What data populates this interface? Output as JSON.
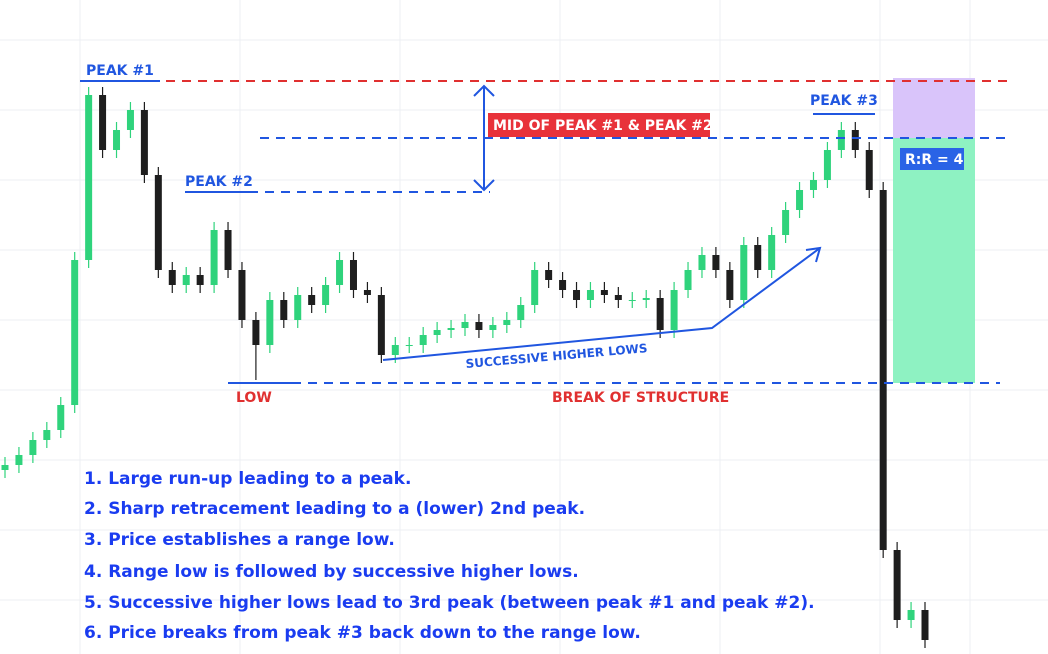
{
  "chart_data": {
    "type": "candlestick",
    "open": [
      184,
      189,
      199,
      214,
      224,
      249,
      394,
      559,
      504,
      524,
      544,
      479,
      384,
      369,
      379,
      369,
      424,
      384,
      334,
      309,
      354,
      334,
      359,
      349,
      369,
      394,
      364,
      359,
      299,
      309,
      309,
      319,
      324,
      326,
      332,
      324,
      329,
      334,
      349,
      384,
      374,
      364,
      354,
      364,
      359,
      354,
      354,
      356,
      324,
      364,
      384,
      399,
      384,
      354,
      409,
      384,
      419,
      444,
      464,
      474,
      504,
      524,
      504,
      464,
      104,
      34,
      44
    ],
    "high": [
      197,
      207,
      222,
      232,
      257,
      402,
      567,
      567,
      532,
      552,
      552,
      487,
      392,
      387,
      387,
      432,
      432,
      392,
      342,
      362,
      362,
      367,
      367,
      377,
      402,
      402,
      372,
      367,
      317,
      317,
      327,
      332,
      334,
      340,
      340,
      337,
      342,
      357,
      392,
      392,
      382,
      372,
      372,
      372,
      367,
      362,
      364,
      364,
      372,
      392,
      407,
      407,
      392,
      417,
      417,
      427,
      452,
      472,
      482,
      512,
      532,
      532,
      512,
      472,
      112,
      52,
      52
    ],
    "low": [
      176,
      181,
      191,
      206,
      216,
      241,
      386,
      496,
      496,
      516,
      471,
      376,
      361,
      361,
      361,
      361,
      376,
      326,
      274,
      301,
      326,
      326,
      341,
      341,
      361,
      356,
      351,
      291,
      291,
      301,
      301,
      311,
      316,
      318,
      316,
      316,
      321,
      326,
      341,
      366,
      356,
      346,
      346,
      351,
      346,
      346,
      346,
      316,
      316,
      356,
      376,
      376,
      346,
      346,
      376,
      376,
      411,
      436,
      456,
      466,
      496,
      496,
      456,
      96,
      26,
      26,
      6
    ],
    "close": [
      189,
      199,
      214,
      224,
      249,
      394,
      559,
      504,
      524,
      544,
      479,
      384,
      369,
      379,
      369,
      424,
      384,
      334,
      309,
      354,
      334,
      359,
      349,
      369,
      394,
      364,
      359,
      299,
      309,
      309,
      319,
      324,
      326,
      332,
      324,
      329,
      334,
      349,
      384,
      374,
      364,
      354,
      364,
      359,
      354,
      354,
      356,
      324,
      364,
      384,
      399,
      384,
      354,
      409,
      384,
      419,
      444,
      464,
      474,
      504,
      524,
      504,
      464,
      104,
      34,
      44,
      14
    ],
    "ylim": [
      0,
      654
    ],
    "up_color": "#2fd37c",
    "down_color": "#1e1e1e",
    "annotations": {
      "peak1": "PEAK #1",
      "peak2": "PEAK #2",
      "peak3": "PEAK #3",
      "mid": "MID OF PEAK #1 & PEAK #2",
      "low": "LOW",
      "bos": "BREAK OF STRUCTURE",
      "higher_lows": "SUCCESSIVE HIGHER LOWS",
      "rr": "R:R = 4"
    }
  },
  "notes": [
    "1. Large run-up leading to a peak.",
    "2. Sharp retracement leading to a (lower) 2nd peak.",
    "3. Price establishes a range low.",
    "4. Range low is followed by successive higher lows.",
    "5. Successive higher lows lead to 3rd peak (between peak #1 and peak #2).",
    "6. Price breaks from peak #3 back down to the range low."
  ]
}
